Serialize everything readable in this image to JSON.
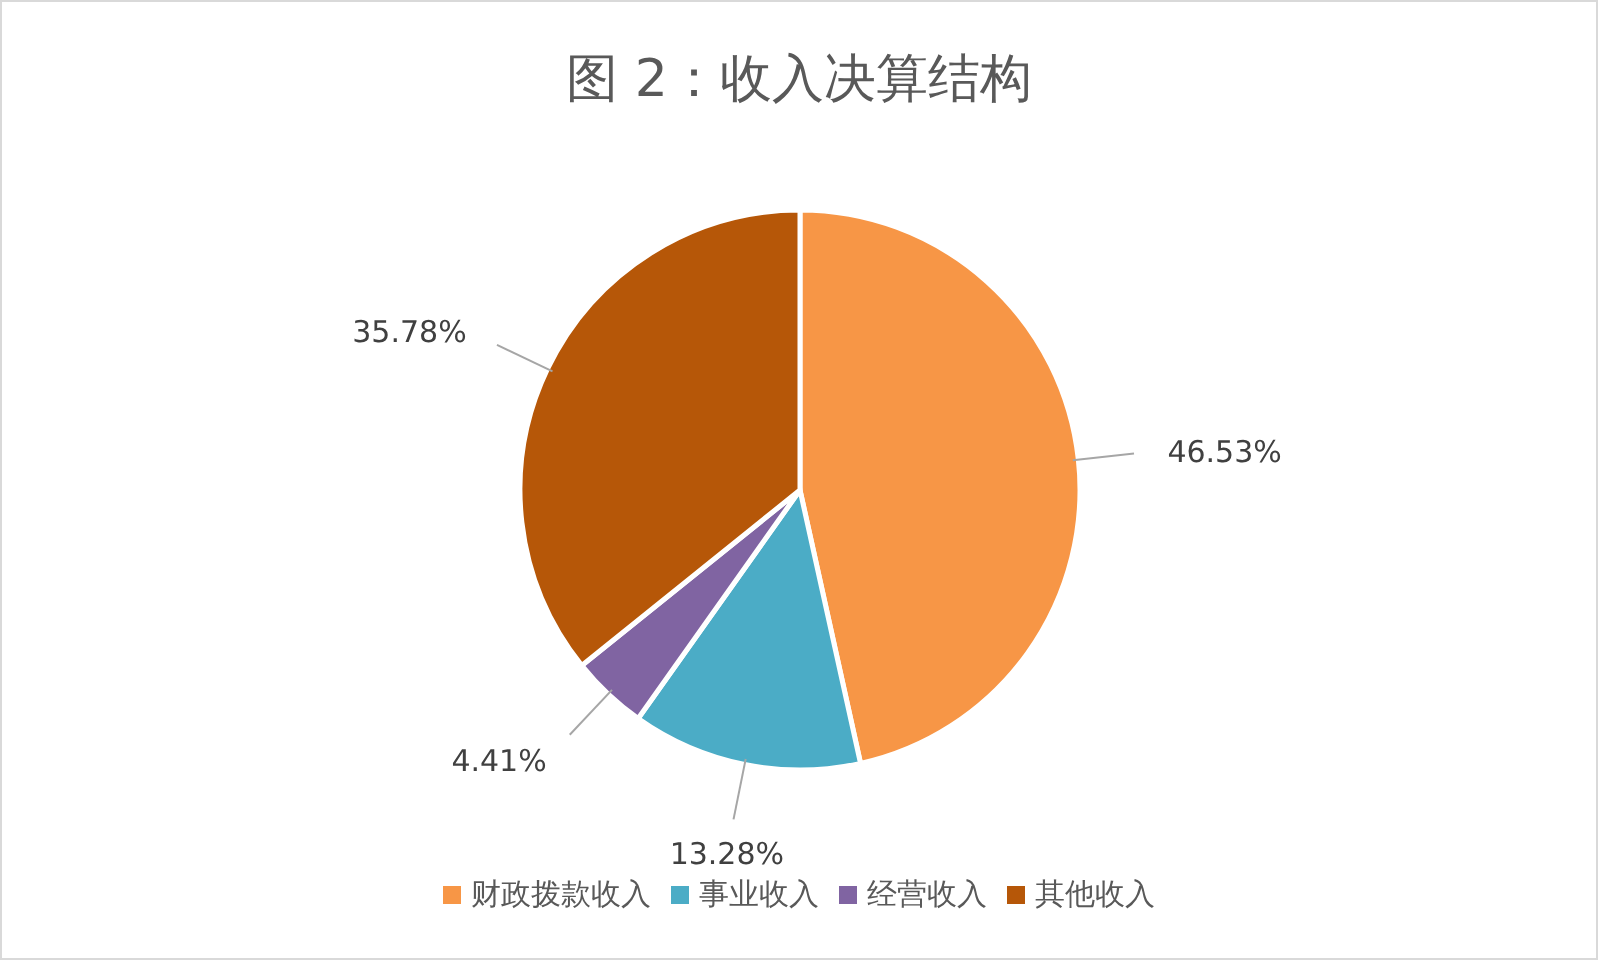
{
  "chart_data": {
    "type": "pie",
    "title": "图 2：收入决算结构",
    "categories": [
      "财政拨款收入",
      "事业收入",
      "经营收入",
      "其他收入"
    ],
    "values": [
      46.53,
      13.28,
      4.41,
      35.78
    ],
    "value_labels": [
      "46.53%",
      "13.28%",
      "4.41%",
      "35.78%"
    ],
    "colors": [
      "#f79646",
      "#4bacc6",
      "#8064a2",
      "#b65708"
    ],
    "legend": "bottom"
  }
}
